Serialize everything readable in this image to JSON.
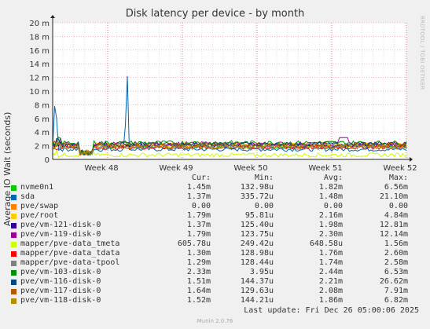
{
  "chart_data": {
    "type": "line",
    "title": "Disk latency per device - by month",
    "ylabel": "Average IO Wait (seconds)",
    "side_label": "RRDTOOL / TOBI OETIKER",
    "ylim": [
      0,
      20
    ],
    "y_ticks": [
      "0",
      "2 m",
      "4 m",
      "6 m",
      "8 m",
      "10 m",
      "12 m",
      "14 m",
      "16 m",
      "18 m",
      "20 m"
    ],
    "x_ticks": [
      "Week 48",
      "Week 49",
      "Week 50",
      "Week 51",
      "Week 52"
    ],
    "grid": true,
    "legend_headers": {
      "cur": "Cur:",
      "min": "Min:",
      "avg": "Avg:",
      "max": "Max:"
    },
    "series": [
      {
        "name": "nvme0n1",
        "color": "#00cc00",
        "cur": "1.45m",
        "min": "132.98u",
        "avg": "1.82m",
        "max": "6.56m"
      },
      {
        "name": "sda",
        "color": "#0066b3",
        "cur": "1.37m",
        "min": "335.72u",
        "avg": "1.48m",
        "max": "21.10m"
      },
      {
        "name": "pve/swap",
        "color": "#ff8000",
        "cur": "0.00",
        "min": "0.00",
        "avg": "0.00",
        "max": "0.00"
      },
      {
        "name": "pve/root",
        "color": "#ffcc00",
        "cur": "1.79m",
        "min": "95.81u",
        "avg": "2.16m",
        "max": "4.84m"
      },
      {
        "name": "pve/vm-121-disk-0",
        "color": "#330099",
        "cur": "1.37m",
        "min": "125.40u",
        "avg": "1.98m",
        "max": "12.81m"
      },
      {
        "name": "pve/vm-119-disk-0",
        "color": "#990099",
        "cur": "1.79m",
        "min": "123.75u",
        "avg": "2.30m",
        "max": "12.14m"
      },
      {
        "name": "mapper/pve-data_tmeta",
        "color": "#ccff00",
        "cur": "605.78u",
        "min": "249.42u",
        "avg": "648.58u",
        "max": "1.56m"
      },
      {
        "name": "mapper/pve-data_tdata",
        "color": "#ff0000",
        "cur": "1.30m",
        "min": "128.98u",
        "avg": "1.76m",
        "max": "2.60m"
      },
      {
        "name": "mapper/pve-data-tpool",
        "color": "#808080",
        "cur": "1.29m",
        "min": "128.44u",
        "avg": "1.74m",
        "max": "2.58m"
      },
      {
        "name": "pve/vm-103-disk-0",
        "color": "#008f00",
        "cur": "2.33m",
        "min": "3.95u",
        "avg": "2.44m",
        "max": "6.53m"
      },
      {
        "name": "pve/vm-116-disk-0",
        "color": "#00487d",
        "cur": "1.51m",
        "min": "144.37u",
        "avg": "2.21m",
        "max": "26.62m"
      },
      {
        "name": "pve/vm-117-disk-0",
        "color": "#b35a00",
        "cur": "1.64m",
        "min": "129.63u",
        "avg": "2.08m",
        "max": "7.91m"
      },
      {
        "name": "pve/vm-118-disk-0",
        "color": "#b38f00",
        "cur": "1.52m",
        "min": "144.21u",
        "avg": "1.86m",
        "max": "6.82m"
      }
    ]
  },
  "footer": {
    "last_update": "Last update: Fri Dec 26 05:00:06 2025",
    "generator": "Munin 2.0.76"
  }
}
